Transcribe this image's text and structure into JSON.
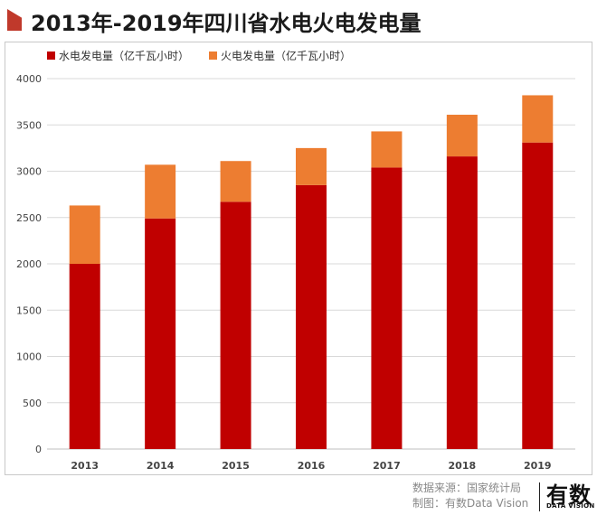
{
  "page_title": "2013年-2019年四川省水电火电发电量",
  "chart_data": {
    "type": "bar",
    "stacked": true,
    "categories": [
      "2013",
      "2014",
      "2015",
      "2016",
      "2017",
      "2018",
      "2019"
    ],
    "series": [
      {
        "name": "水电发电量（亿千瓦小时）",
        "color": "#c00000",
        "values": [
          2000,
          2490,
          2670,
          2850,
          3040,
          3160,
          3310
        ]
      },
      {
        "name": "火电发电量（亿千瓦小时）",
        "color": "#ed7d31",
        "values": [
          630,
          580,
          440,
          400,
          390,
          450,
          510
        ]
      }
    ],
    "yticks": [
      "0",
      "500",
      "1000",
      "1500",
      "2000",
      "2500",
      "3000",
      "3500",
      "4000"
    ],
    "ylim": [
      0,
      4000
    ],
    "grid": true,
    "legend_position": "top-left"
  },
  "footer": {
    "source": "数据来源：国家统计局",
    "made_by": "制图：有数Data Vision"
  },
  "logo": {
    "main": "有数",
    "sub": "DATA VISION"
  }
}
